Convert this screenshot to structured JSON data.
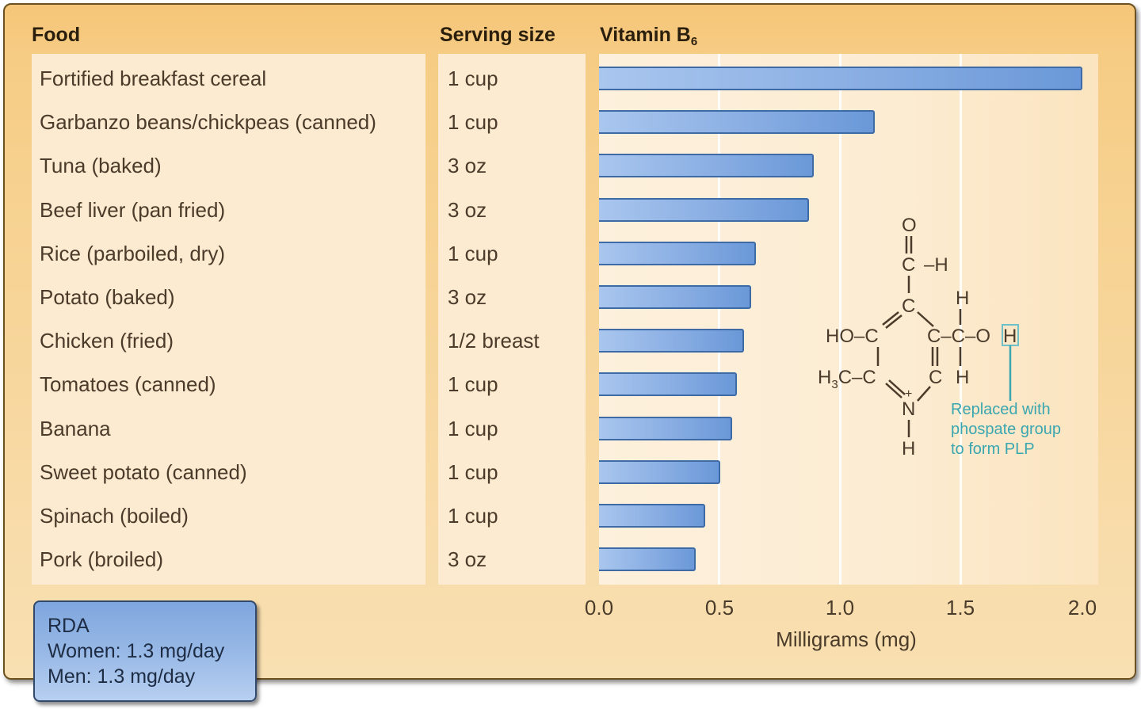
{
  "headers": {
    "food": "Food",
    "serving": "Serving size",
    "vitamin": "Vitamin B",
    "vitamin_sub": "6"
  },
  "rows": [
    {
      "food": "Fortified breakfast cereal",
      "serving": "1 cup",
      "value": 2.0
    },
    {
      "food": "Garbanzo beans/chickpeas (canned)",
      "serving": "1 cup",
      "value": 1.14
    },
    {
      "food": "Tuna (baked)",
      "serving": "3 oz",
      "value": 0.89
    },
    {
      "food": "Beef liver (pan fried)",
      "serving": "3 oz",
      "value": 0.87
    },
    {
      "food": "Rice (parboiled, dry)",
      "serving": "1 cup",
      "value": 0.65
    },
    {
      "food": "Potato (baked)",
      "serving": "3 oz",
      "value": 0.63
    },
    {
      "food": "Chicken (fried)",
      "serving": "1/2 breast",
      "value": 0.6
    },
    {
      "food": "Tomatoes (canned)",
      "serving": "1 cup",
      "value": 0.57
    },
    {
      "food": "Banana",
      "serving": "1 cup",
      "value": 0.55
    },
    {
      "food": "Sweet potato (canned)",
      "serving": "1 cup",
      "value": 0.5
    },
    {
      "food": "Spinach (boiled)",
      "serving": "1 cup",
      "value": 0.44
    },
    {
      "food": "Pork (broiled)",
      "serving": "3 oz",
      "value": 0.4
    }
  ],
  "axis": {
    "ticks": [
      "0.0",
      "0.5",
      "1.0",
      "1.5",
      "2.0"
    ],
    "label": "Milligrams (mg)"
  },
  "rda": {
    "title": "RDA",
    "women": "Women: 1.3 mg/day",
    "men": "Men: 1.3 mg/day"
  },
  "molecule": {
    "annotation_line1": "Replaced with",
    "annotation_line2": "phospate group",
    "annotation_line3": "to form PLP",
    "annotation_color": "#3aa6b0"
  },
  "colors": {
    "bar": "#7aa3dc",
    "bar_border": "#3e6aa6",
    "panel": "#f6cd86"
  },
  "chart_data": {
    "type": "bar",
    "orientation": "horizontal",
    "title": "Vitamin B6",
    "categories": [
      "Fortified breakfast cereal",
      "Garbanzo beans/chickpeas (canned)",
      "Tuna (baked)",
      "Beef liver (pan fried)",
      "Rice (parboiled, dry)",
      "Potato (baked)",
      "Chicken (fried)",
      "Tomatoes (canned)",
      "Banana",
      "Sweet potato (canned)",
      "Spinach (boiled)",
      "Pork (broiled)"
    ],
    "serving_sizes": [
      "1 cup",
      "1 cup",
      "3 oz",
      "3 oz",
      "1 cup",
      "3 oz",
      "1/2 breast",
      "1 cup",
      "1 cup",
      "1 cup",
      "1 cup",
      "3 oz"
    ],
    "values": [
      2.0,
      1.14,
      0.89,
      0.87,
      0.65,
      0.63,
      0.6,
      0.57,
      0.55,
      0.5,
      0.44,
      0.4
    ],
    "xlabel": "Milligrams (mg)",
    "ylabel": "",
    "xlim": [
      0,
      2.0
    ],
    "xticks": [
      0.0,
      0.5,
      1.0,
      1.5,
      2.0
    ],
    "grid": true,
    "annotations": [
      "RDA Women: 1.3 mg/day",
      "RDA Men: 1.3 mg/day",
      "Replaced with phospate group to form PLP"
    ]
  }
}
